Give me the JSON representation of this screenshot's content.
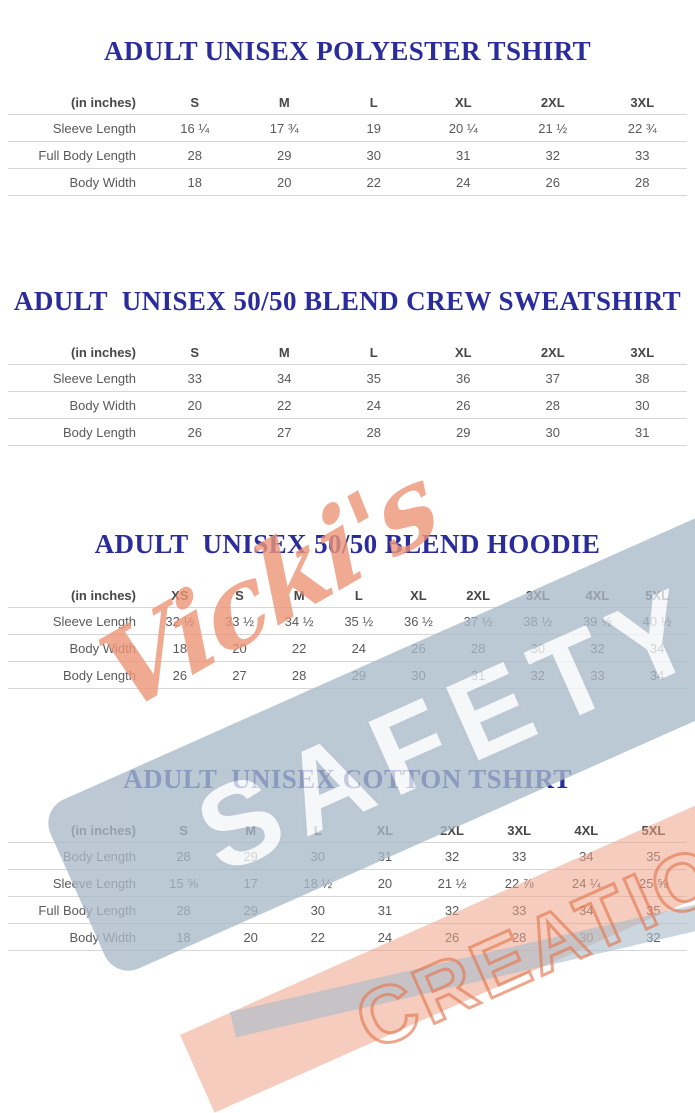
{
  "colors": {
    "title": "#2a2c9c",
    "table_text": "#595959",
    "header_text": "#474747",
    "divider": "#d6d6d6",
    "wm_script": "#ee9678",
    "wm_band": "#a9bac9",
    "wm_band_text": "#ffffff",
    "wm_outline": "#e5784f",
    "wm_stripe": "#eda287"
  },
  "watermark": {
    "script_text": "Vicki's",
    "band_text": "SAFETY",
    "outline_text": "CREATIONS"
  },
  "tables": [
    {
      "title": "ADULT UNISEX POLYESTER TSHIRT",
      "unit_label": "(in inches)",
      "columns": [
        "S",
        "M",
        "L",
        "XL",
        "2XL",
        "3XL"
      ],
      "rows": [
        {
          "label": "Sleeve Length",
          "values": [
            "16 ¼",
            "17 ¾",
            "19",
            "20 ¼",
            "21 ½",
            "22 ¾"
          ]
        },
        {
          "label": "Full Body Length",
          "values": [
            "28",
            "29",
            "30",
            "31",
            "32",
            "33"
          ]
        },
        {
          "label": "Body Width",
          "values": [
            "18",
            "20",
            "22",
            "24",
            "26",
            "28"
          ]
        }
      ]
    },
    {
      "title": "ADULT  UNISEX 50/50 BLEND CREW SWEATSHIRT",
      "unit_label": "(in inches)",
      "columns": [
        "S",
        "M",
        "L",
        "XL",
        "2XL",
        "3XL"
      ],
      "rows": [
        {
          "label": "Sleeve Length",
          "values": [
            "33",
            "34",
            "35",
            "36",
            "37",
            "38"
          ]
        },
        {
          "label": "Body Width",
          "values": [
            "20",
            "22",
            "24",
            "26",
            "28",
            "30"
          ]
        },
        {
          "label": "Body Length",
          "values": [
            "26",
            "27",
            "28",
            "29",
            "30",
            "31"
          ]
        }
      ]
    },
    {
      "title": "ADULT  UNISEX 50/50 BLEND HOODIE",
      "unit_label": "(in inches)",
      "columns": [
        "XS",
        "S",
        "M",
        "L",
        "XL",
        "2XL",
        "3XL",
        "4XL",
        "5XL"
      ],
      "rows": [
        {
          "label": "Sleeve Length",
          "values": [
            "32 ½",
            "33 ½",
            "34 ½",
            "35 ½",
            "36 ½",
            "37 ½",
            "38 ½",
            "39 ½",
            "40 ½"
          ]
        },
        {
          "label": "Body Width",
          "values": [
            "18",
            "20",
            "22",
            "24",
            "26",
            "28",
            "30",
            "32",
            "34"
          ]
        },
        {
          "label": "Body Length",
          "values": [
            "26",
            "27",
            "28",
            "29",
            "30",
            "31",
            "32",
            "33",
            "34"
          ]
        }
      ]
    },
    {
      "title": "ADULT  UNISEX COTTON TSHIRT",
      "unit_label": "(in inches)",
      "columns": [
        "S",
        "M",
        "L",
        "XL",
        "2XL",
        "3XL",
        "4XL",
        "5XL"
      ],
      "rows": [
        {
          "label": "Body Length",
          "values": [
            "28",
            "29",
            "30",
            "31",
            "32",
            "33",
            "34",
            "35"
          ]
        },
        {
          "label": "Sleeve Length",
          "values": [
            "15 ⅝",
            "17",
            "18 ½",
            "20",
            "21 ½",
            "22 ⅞",
            "24 ¼",
            "25 ⅝"
          ]
        },
        {
          "label": "Full Body Length",
          "values": [
            "28",
            "29",
            "30",
            "31",
            "32",
            "33",
            "34",
            "35"
          ]
        },
        {
          "label": "Body Width",
          "values": [
            "18",
            "20",
            "22",
            "24",
            "26",
            "28",
            "30",
            "32"
          ]
        }
      ]
    }
  ]
}
